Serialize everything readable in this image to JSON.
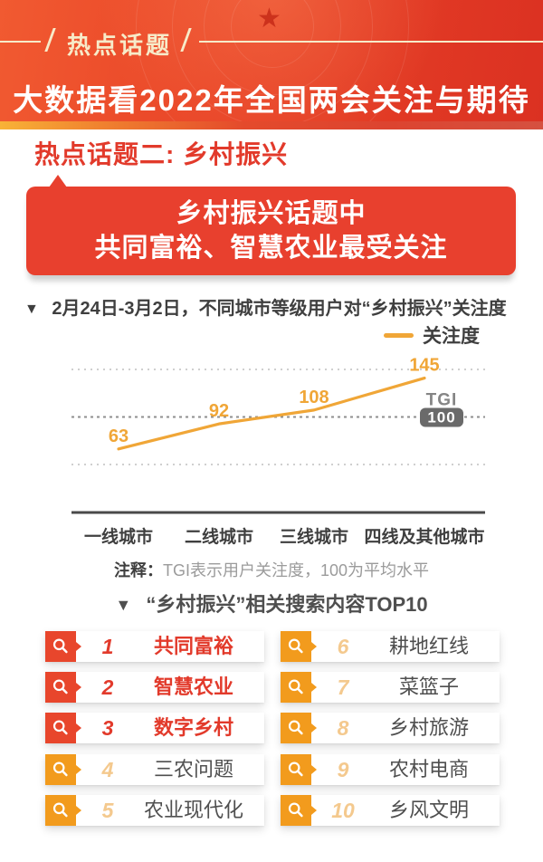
{
  "header": {
    "badge": "热点话题",
    "title": "大数据看2022年全国两会关注与期待"
  },
  "topic": {
    "heading": "热点话题二: 乡村振兴",
    "banner": {
      "line1": "乡村振兴话题中",
      "line2": "共同富裕、智慧农业最受关注"
    }
  },
  "chart_data": {
    "type": "line",
    "bullet": "▼",
    "title": "2月24日-3月2日，不同城市等级用户对“乡村振兴”关注度",
    "legend_position": "top-right",
    "categories": [
      "一线城市",
      "二线城市",
      "三线城市",
      "四线及其他城市"
    ],
    "series": [
      {
        "name": "关注度",
        "values": [
          63,
          92,
          108,
          145
        ]
      }
    ],
    "reference": {
      "label": "TGI",
      "value": 100,
      "value_label": "100"
    },
    "ylim": [
      45,
      155
    ],
    "grid": "dotted-horizontal",
    "note_label": "注释：",
    "note_text": "TGI表示用户关注度，100为平均水平"
  },
  "top10": {
    "bullet": "▼",
    "heading": "“乡村振兴”相关搜索内容TOP10",
    "items": [
      {
        "rank": "1",
        "label": "共同富裕",
        "tier": "top"
      },
      {
        "rank": "2",
        "label": "智慧农业",
        "tier": "top"
      },
      {
        "rank": "3",
        "label": "数字乡村",
        "tier": "top"
      },
      {
        "rank": "4",
        "label": "三农问题",
        "tier": "normal"
      },
      {
        "rank": "5",
        "label": "农业现代化",
        "tier": "normal"
      },
      {
        "rank": "6",
        "label": "耕地红线",
        "tier": "normal"
      },
      {
        "rank": "7",
        "label": "菜篮子",
        "tier": "normal"
      },
      {
        "rank": "8",
        "label": "乡村旅游",
        "tier": "normal"
      },
      {
        "rank": "9",
        "label": "农村电商",
        "tier": "normal"
      },
      {
        "rank": "10",
        "label": "乡风文明",
        "tier": "normal"
      }
    ]
  },
  "colors": {
    "brand_red": "#E23A2B",
    "banner_red": "#E8402E",
    "icon_red": "#E8462C",
    "icon_orange": "#F29B1D",
    "rank_amber": "#F4C98E",
    "cream": "#F7EBC9",
    "line_orange": "#F0A637",
    "text_dark": "#3F3F3F",
    "text_gray": "#9B9B9B",
    "grid_light": "#CFCFCF",
    "grid_mid": "#8F8F8F",
    "axis_dark": "#4A4A4A",
    "badge_gray": "#6A6A6A",
    "ref_label_gray": "#858585"
  }
}
